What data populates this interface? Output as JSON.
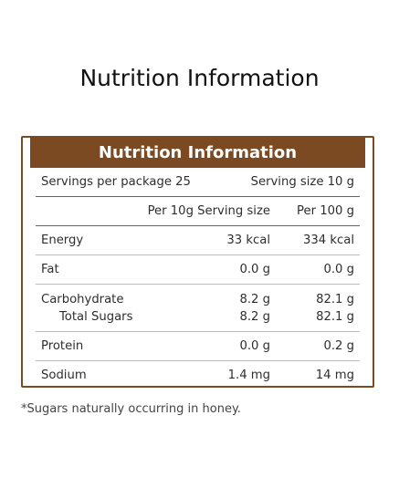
{
  "page": {
    "title": "Nutrition Information",
    "footnote": "*Sugars naturally occurring in honey."
  },
  "panel": {
    "header": "Nutrition Information",
    "servings_per_package": "Servings per package 25",
    "serving_size": "Serving size 10 g",
    "columns": {
      "name": "",
      "per_serving": "Per 10g Serving size",
      "per_100g": "Per 100 g"
    },
    "rows": [
      {
        "name": "Energy",
        "per_serving": "33 kcal",
        "per_100g": "334 kcal"
      },
      {
        "name": "Fat",
        "per_serving": "0.0 g",
        "per_100g": "0.0 g"
      },
      {
        "name": "Carbohydrate",
        "per_serving": "8.2 g",
        "per_100g": "82.1 g",
        "sub": {
          "name": "Total Sugars",
          "per_serving": "8.2 g",
          "per_100g": "82.1 g"
        }
      },
      {
        "name": "Protein",
        "per_serving": "0.0 g",
        "per_100g": "0.2 g"
      },
      {
        "name": "Sodium",
        "per_serving": "1.4 mg",
        "per_100g": "14 mg"
      }
    ]
  },
  "colors": {
    "accent": "#7b4a22",
    "divider": "#bcbcbc"
  }
}
